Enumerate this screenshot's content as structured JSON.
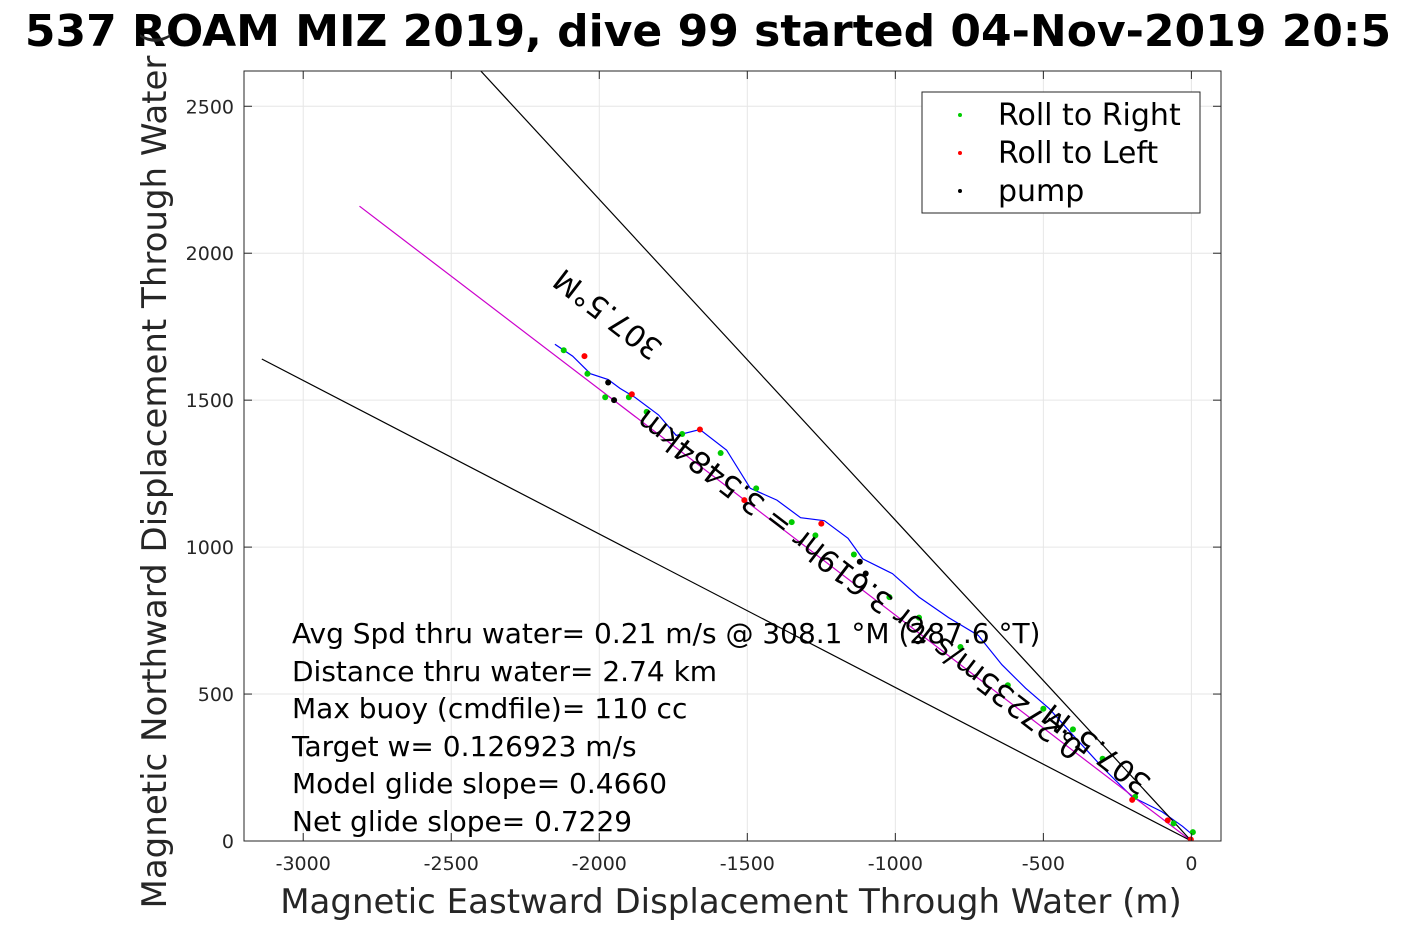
{
  "chart_data": {
    "type": "line",
    "title": "537 ROAM MIZ 2019, dive 99 started 04-Nov-2019 20:5",
    "xlabel": "Magnetic Eastward Displacement Through Water (m)",
    "ylabel": "Magnetic Northward Displacement Through Water (",
    "xlim": [
      -3200,
      100
    ],
    "ylim": [
      0,
      2620
    ],
    "xticks": [
      -3000,
      -2500,
      -2000,
      -1500,
      -1000,
      -500,
      0
    ],
    "xtick_labels": [
      "-3000",
      "-2500",
      "-2000",
      "-1500",
      "-1000",
      "-500",
      "0"
    ],
    "yticks": [
      0,
      500,
      1000,
      1500,
      2000,
      2500
    ],
    "ytick_labels": [
      "0",
      "500",
      "1000",
      "1500",
      "2000",
      "2500"
    ],
    "grid": true,
    "legend_position": "top-right",
    "legend": [
      {
        "label": "Roll to Right",
        "color": "#00cc00"
      },
      {
        "label": "Roll to Left",
        "color": "#ff0000"
      },
      {
        "label": "pump",
        "color": "#000000"
      }
    ],
    "series": [
      {
        "name": "track",
        "color": "#0000ff",
        "x": [
          5,
          -30,
          -100,
          -200,
          -300,
          -400,
          -480,
          -560,
          -640,
          -720,
          -820,
          -920,
          -1010,
          -1110,
          -1160,
          -1240,
          -1320,
          -1400,
          -1490,
          -1570,
          -1660,
          -1740,
          -1800,
          -1880,
          -1930,
          -1970,
          -2030,
          -2090,
          -2150
        ],
        "y": [
          20,
          50,
          100,
          150,
          250,
          360,
          450,
          520,
          600,
          700,
          760,
          830,
          910,
          960,
          1030,
          1090,
          1100,
          1160,
          1200,
          1330,
          1400,
          1380,
          1450,
          1510,
          1540,
          1570,
          1590,
          1650,
          1690
        ]
      },
      {
        "name": "heading line",
        "color": "#cc00cc",
        "x": [
          0,
          -2810
        ],
        "y": [
          0,
          2160
        ]
      },
      {
        "name": "bound 1",
        "color": "#000000",
        "x": [
          0,
          -2400
        ],
        "y": [
          0,
          2620
        ]
      },
      {
        "name": "bound 2",
        "color": "#000000",
        "x": [
          0,
          -3140
        ],
        "y": [
          0,
          1640
        ]
      },
      {
        "name": "Roll to Right",
        "color": "#00cc00",
        "marker": true,
        "x": [
          5,
          -60,
          -190,
          -300,
          -400,
          -500,
          -620,
          -780,
          -920,
          -1020,
          -1140,
          -1270,
          -1350,
          -1470,
          -1590,
          -1720,
          -1840,
          -1900,
          -1980,
          -2040,
          -2120
        ],
        "y": [
          30,
          60,
          150,
          280,
          380,
          450,
          530,
          660,
          760,
          830,
          975,
          1040,
          1085,
          1200,
          1320,
          1385,
          1460,
          1510,
          1510,
          1590,
          1670
        ]
      },
      {
        "name": "Roll to Left",
        "color": "#ff0000",
        "marker": true,
        "x": [
          -2,
          -80,
          -200,
          -1250,
          -1510,
          -1660,
          -1890,
          -2050
        ],
        "y": [
          5,
          70,
          140,
          1080,
          1160,
          1400,
          1520,
          1650
        ]
      },
      {
        "name": "pump",
        "color": "#000000",
        "marker": true,
        "x": [
          -1100,
          -1120,
          -1970,
          -1950
        ],
        "y": [
          910,
          950,
          1560,
          1500
        ]
      }
    ],
    "annotations": [
      {
        "text": "307.5°M",
        "x": -1950,
        "y": 1820,
        "rotation_deg": 217.5
      },
      {
        "text": "0.27235m/s for 3.619hr = 3.5484km",
        "x": -1100,
        "y": 900,
        "rotation_deg": 217.5
      },
      {
        "text": "307.5°M",
        "x": -300,
        "y": 340,
        "rotation_deg": 217.5
      }
    ],
    "text_block": [
      "Avg Spd thru water=  0.21 m/s @ 308.1 °M (287.6 °T)",
      "Distance thru water=  2.74 km",
      "Max buoy (cmdfile)= 110 cc",
      "Target w= 0.126923 m/s",
      "Model glide slope= 0.4660",
      "Net glide slope= 0.7229"
    ]
  }
}
